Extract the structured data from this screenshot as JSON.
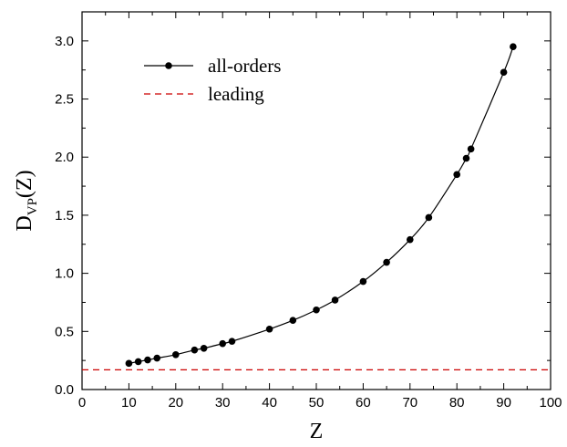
{
  "chart_data": {
    "type": "line",
    "xlabel": "Z",
    "ylabel": {
      "main": "D",
      "subscript": "VP",
      "suffix": "(Z)"
    },
    "xlim": [
      0,
      100
    ],
    "ylim": [
      0,
      3.25
    ],
    "x_ticks": [
      0,
      10,
      20,
      30,
      40,
      50,
      60,
      70,
      80,
      90,
      100
    ],
    "y_ticks": [
      0.0,
      0.5,
      1.0,
      1.5,
      2.0,
      2.5,
      3.0
    ],
    "x_tick_labels": [
      "0",
      "10",
      "20",
      "30",
      "40",
      "50",
      "60",
      "70",
      "80",
      "90",
      "100"
    ],
    "y_tick_labels": [
      "0.0",
      "0.5",
      "1.0",
      "1.5",
      "2.0",
      "2.5",
      "3.0"
    ],
    "grid": false,
    "legend_position": "top-left",
    "series": [
      {
        "name": "all-orders",
        "style": "line-with-markers",
        "color": "#000000",
        "x": [
          10,
          12,
          14,
          16,
          20,
          24,
          26,
          30,
          32,
          40,
          45,
          50,
          54,
          60,
          65,
          70,
          74,
          80,
          82,
          83,
          90,
          92
        ],
        "y": [
          0.225,
          0.24,
          0.255,
          0.27,
          0.3,
          0.34,
          0.355,
          0.395,
          0.415,
          0.52,
          0.595,
          0.685,
          0.77,
          0.93,
          1.095,
          1.29,
          1.48,
          1.85,
          1.99,
          2.07,
          2.73,
          2.95
        ]
      },
      {
        "name": "leading",
        "style": "dashed",
        "color": "#cc0000",
        "x": [
          0,
          100
        ],
        "y": [
          0.17,
          0.17
        ]
      }
    ]
  }
}
